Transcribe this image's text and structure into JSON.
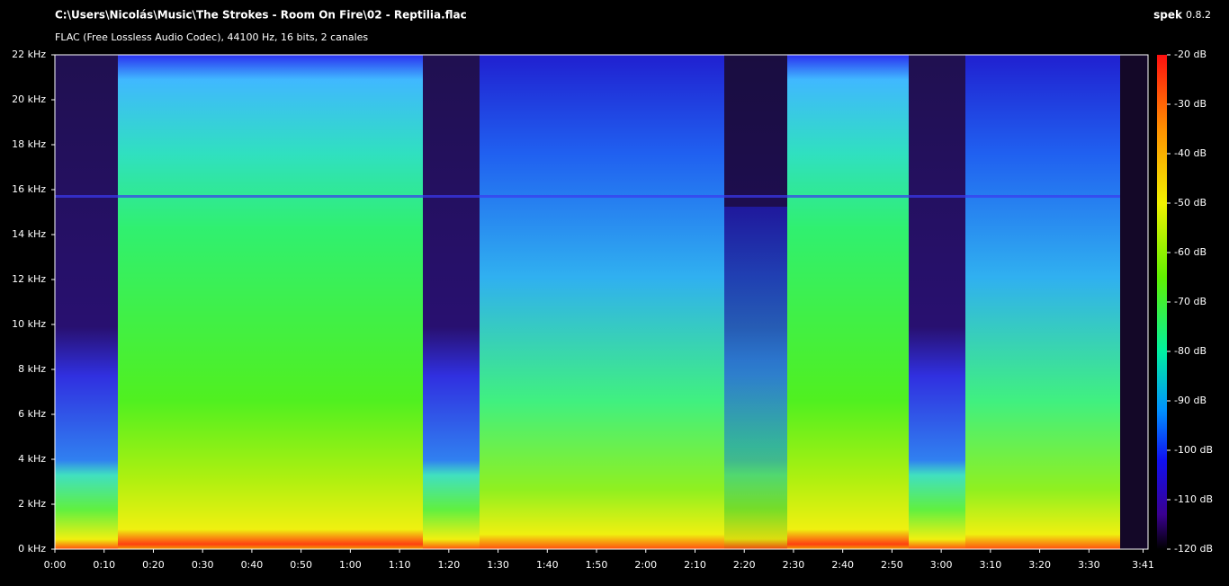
{
  "chart_data": {
    "type": "spectrogram",
    "title": "C:\\Users\\Nicolás\\Music\\The Strokes - Room On Fire\\02 - Reptilia.flac",
    "subtitle": "FLAC (Free Lossless Audio Codec), 44100 Hz, 16 bits, 2 canales",
    "app_name": "spek",
    "app_version": "0.8.2",
    "xlim": [
      0,
      222
    ],
    "ylim": [
      0,
      22
    ],
    "zlim": [
      -120,
      -20
    ],
    "xticks": [
      {
        "value": 0,
        "label": "0:00"
      },
      {
        "value": 10,
        "label": "0:10"
      },
      {
        "value": 20,
        "label": "0:20"
      },
      {
        "value": 30,
        "label": "0:30"
      },
      {
        "value": 40,
        "label": "0:40"
      },
      {
        "value": 50,
        "label": "0:50"
      },
      {
        "value": 60,
        "label": "1:00"
      },
      {
        "value": 70,
        "label": "1:10"
      },
      {
        "value": 80,
        "label": "1:20"
      },
      {
        "value": 90,
        "label": "1:30"
      },
      {
        "value": 100,
        "label": "1:40"
      },
      {
        "value": 110,
        "label": "1:50"
      },
      {
        "value": 120,
        "label": "2:00"
      },
      {
        "value": 130,
        "label": "2:10"
      },
      {
        "value": 140,
        "label": "2:20"
      },
      {
        "value": 150,
        "label": "2:30"
      },
      {
        "value": 160,
        "label": "2:40"
      },
      {
        "value": 170,
        "label": "2:50"
      },
      {
        "value": 180,
        "label": "3:00"
      },
      {
        "value": 190,
        "label": "3:10"
      },
      {
        "value": 200,
        "label": "3:20"
      },
      {
        "value": 210,
        "label": "3:30"
      },
      {
        "value": 221,
        "label": "3:41"
      }
    ],
    "yticks": [
      {
        "value": 0,
        "label": "0 kHz"
      },
      {
        "value": 2,
        "label": "2 kHz"
      },
      {
        "value": 4,
        "label": "4 kHz"
      },
      {
        "value": 6,
        "label": "6 kHz"
      },
      {
        "value": 8,
        "label": "8 kHz"
      },
      {
        "value": 10,
        "label": "10 kHz"
      },
      {
        "value": 12,
        "label": "12 kHz"
      },
      {
        "value": 14,
        "label": "14 kHz"
      },
      {
        "value": 16,
        "label": "16 kHz"
      },
      {
        "value": 18,
        "label": "18 kHz"
      },
      {
        "value": 20,
        "label": "20 kHz"
      },
      {
        "value": 22,
        "label": "22 kHz"
      }
    ],
    "zticks": [
      {
        "value": -20,
        "label": "-20 dB"
      },
      {
        "value": -30,
        "label": "-30 dB"
      },
      {
        "value": -40,
        "label": "-40 dB"
      },
      {
        "value": -50,
        "label": "-50 dB"
      },
      {
        "value": -60,
        "label": "-60 dB"
      },
      {
        "value": -70,
        "label": "-70 dB"
      },
      {
        "value": -80,
        "label": "-80 dB"
      },
      {
        "value": -90,
        "label": "-90 dB"
      },
      {
        "value": -100,
        "label": "-100 dB"
      },
      {
        "value": -110,
        "label": "-110 dB"
      },
      {
        "value": -120,
        "label": "-120 dB"
      }
    ]
  }
}
